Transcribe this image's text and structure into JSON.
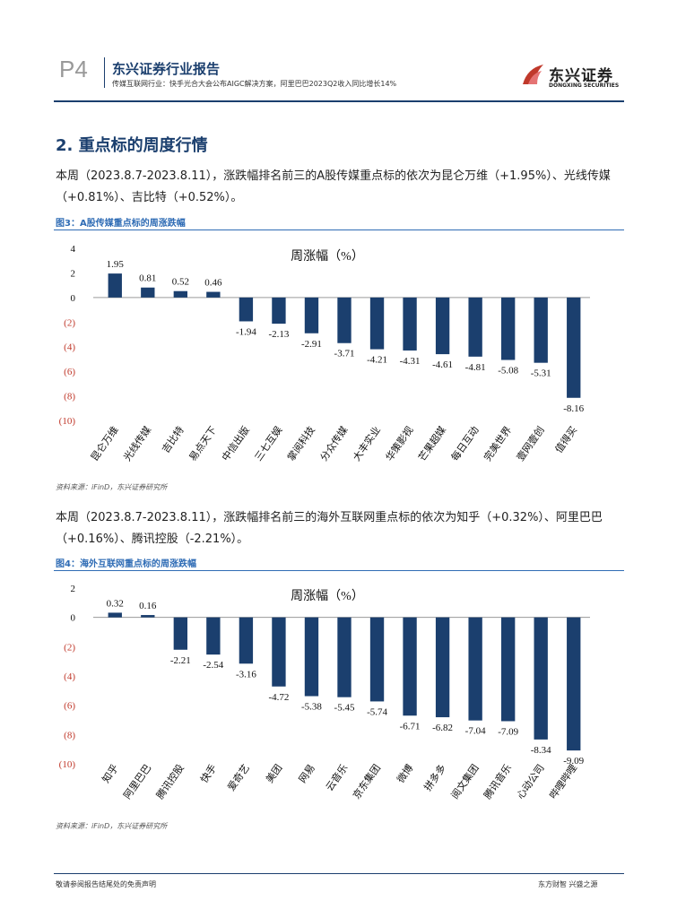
{
  "header": {
    "page_label": "P4",
    "report_title": "东兴证券行业报告",
    "subtitle": "传媒互联网行业：快手光合大会公布AIGC解决方案，阿里巴巴2023Q2收入同比增长14%",
    "logo_cn": "东兴证券",
    "logo_en": "DONGXING SECURITIES"
  },
  "section": {
    "title": "2. 重点标的周度行情"
  },
  "para1": {
    "line1": "本周（2023.8.7-2023.8.11），涨跌幅排名前三的A股传媒重点标的依次为昆仑万维（+1.95%）、光线传媒",
    "line2": "（+0.81%）、吉比特（+0.52%）。"
  },
  "figure3": {
    "title": "图3：A股传媒重点标的周涨跌幅",
    "source": "资料来源：iFinD，东兴证券研究所"
  },
  "para2": {
    "line1": "本周（2023.8.7-2023.8.11），涨跌幅排名前三的海外互联网重点标的依次为知乎（+0.32%）、阿里巴巴",
    "line2": "（+0.16%）、腾讯控股（-2.21%）。"
  },
  "figure4": {
    "title": "图4：海外互联网重点标的周涨跌幅",
    "source": "资料来源：iFinD，东兴证券研究所"
  },
  "footer": {
    "left": "敬请参阅报告结尾处的免责声明",
    "right": "东方财智  兴盛之源"
  },
  "colors": {
    "bar": "#1b3f6e",
    "axis_label_red": "#c0392b",
    "brand_blue": "#1b3f6e"
  },
  "chart_data": [
    {
      "type": "bar",
      "title": "周涨幅（%）",
      "categories": [
        "昆仑万维",
        "光线传媒",
        "吉比特",
        "易点天下",
        "中信出版",
        "三七互娱",
        "掌阅科技",
        "分众传媒",
        "大丰实业",
        "华策影视",
        "芒果超媒",
        "每日互动",
        "完美世界",
        "壹网壹创",
        "值得买"
      ],
      "values": [
        1.95,
        0.81,
        0.52,
        0.46,
        -1.94,
        -2.13,
        -2.91,
        -3.71,
        -4.21,
        -4.31,
        -4.61,
        -4.81,
        -5.08,
        -5.31,
        -8.16
      ],
      "data_labels": [
        "1.95",
        "0.81",
        "0.52",
        "0.46",
        "-1.94",
        "-2.13",
        "-2.91",
        "-3.71",
        "-4.21",
        "-4.31",
        "-4.61",
        "-4.81",
        "-5.08",
        "-5.31",
        "-8.16"
      ],
      "yticks": [
        4,
        2,
        0,
        -2,
        -4,
        -6,
        -8,
        -10
      ],
      "ytick_labels": [
        "4",
        "2",
        "0",
        "(2)",
        "(4)",
        "(6)",
        "(8)",
        "(10)"
      ],
      "ylim": [
        -10,
        4
      ],
      "xlabel": "",
      "ylabel": ""
    },
    {
      "type": "bar",
      "title": "周涨幅（%）",
      "categories": [
        "知乎",
        "阿里巴巴",
        "腾讯控股",
        "快手",
        "爱奇艺",
        "美团",
        "网易",
        "云音乐",
        "京东集团",
        "微博",
        "拼多多",
        "阅文集团",
        "腾讯音乐",
        "心动公司",
        "哔哩哔哩"
      ],
      "values": [
        0.32,
        0.16,
        -2.21,
        -2.54,
        -3.16,
        -4.72,
        -5.38,
        -5.45,
        -5.74,
        -6.71,
        -6.82,
        -7.04,
        -7.09,
        -8.34,
        -9.09
      ],
      "data_labels": [
        "0.32",
        "0.16",
        "-2.21",
        "-2.54",
        "-3.16",
        "-4.72",
        "-5.38",
        "-5.45",
        "-5.74",
        "-6.71",
        "-6.82",
        "-7.04",
        "-7.09",
        "-8.34",
        "-9.09"
      ],
      "yticks": [
        2,
        0,
        -2,
        -4,
        -6,
        -8,
        -10
      ],
      "ytick_labels": [
        "2",
        "0",
        "(2)",
        "(4)",
        "(6)",
        "(8)",
        "(10)"
      ],
      "ylim": [
        -10,
        2
      ],
      "xlabel": "",
      "ylabel": ""
    }
  ]
}
